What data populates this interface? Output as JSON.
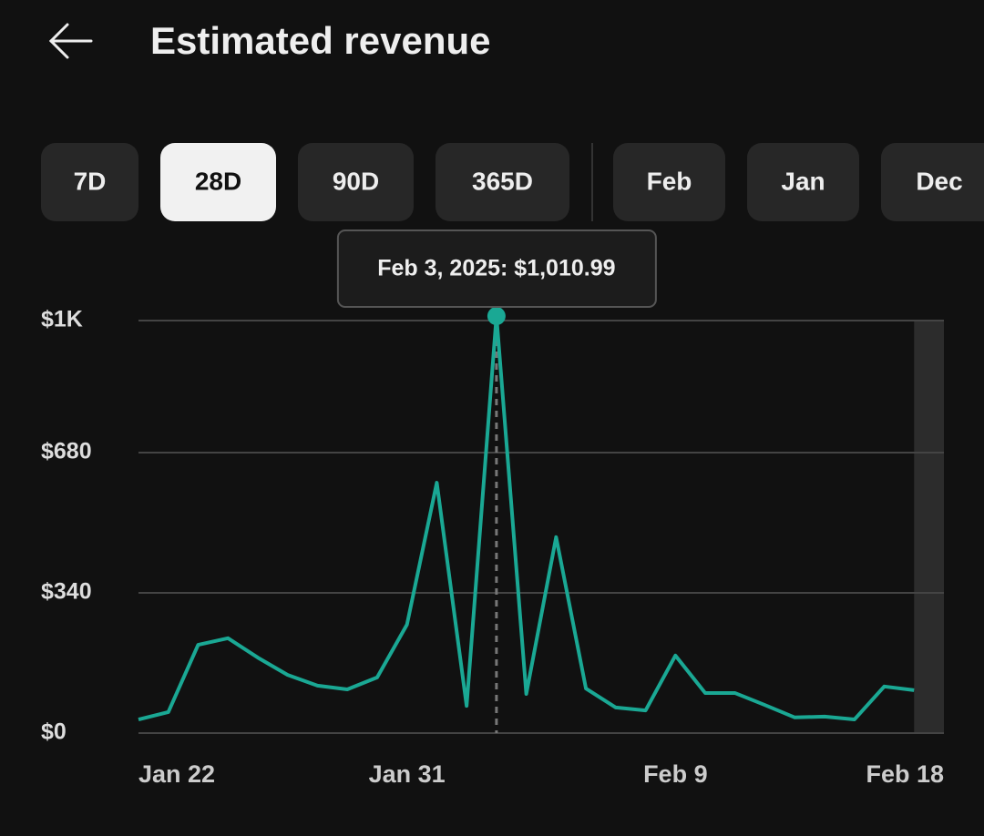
{
  "header": {
    "title": "Estimated revenue"
  },
  "tabs": [
    {
      "label": "7D"
    },
    {
      "label": "28D",
      "selected": true
    },
    {
      "label": "90D"
    },
    {
      "label": "365D"
    },
    {
      "label": "Feb"
    },
    {
      "label": "Jan"
    },
    {
      "label": "Dec"
    }
  ],
  "chart_data": {
    "type": "line",
    "categories": [
      "Jan 22",
      null,
      null,
      null,
      null,
      null,
      null,
      null,
      null,
      "Jan 31",
      null,
      null,
      null,
      null,
      null,
      null,
      null,
      null,
      "Feb 9",
      null,
      null,
      null,
      null,
      null,
      null,
      null,
      null,
      "Feb 18"
    ],
    "series": [
      {
        "name": "Estimated revenue",
        "color": "#1aa894",
        "values": [
          33,
          51,
          214,
          230,
          183,
          141,
          115,
          106,
          135,
          263,
          607,
          66,
          1010.99,
          95,
          475,
          108,
          62,
          55,
          188,
          97,
          97,
          68,
          38,
          40,
          33,
          113,
          104,
          null
        ]
      }
    ],
    "ylim": [
      0,
      1000
    ],
    "yticks": [
      {
        "value": 0,
        "label": "$0"
      },
      {
        "value": 340,
        "label": "$340"
      },
      {
        "value": 680,
        "label": "$680"
      },
      {
        "value": 1000,
        "label": "$1K"
      }
    ],
    "grid": true,
    "tooltip": "Feb 3, 2025: $1,010.99"
  }
}
